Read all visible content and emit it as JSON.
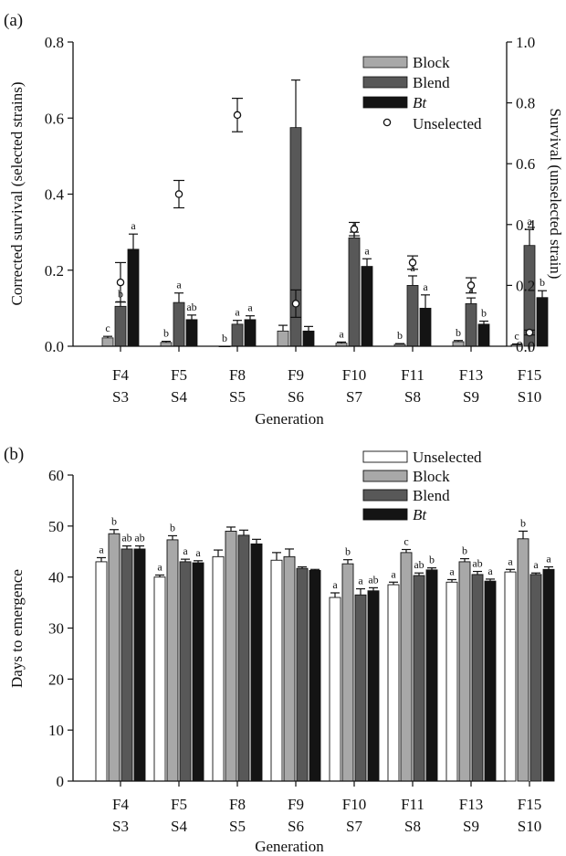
{
  "categories": [
    "F4",
    "F5",
    "F8",
    "F9",
    "F10",
    "F11",
    "F13",
    "F15"
  ],
  "categories_line2": [
    "S3",
    "S4",
    "S5",
    "S6",
    "S7",
    "S8",
    "S9",
    "S10"
  ],
  "chart_data": [
    {
      "type": "bar",
      "panel_label": "(a)",
      "xlabel": "Generation",
      "ylabel": "Corrected survival (selected strains)",
      "ylabel_right": "Survival (unselected strain)",
      "ylim": [
        0,
        0.8
      ],
      "yticks": [
        "0.0",
        "0.2",
        "0.4",
        "0.6",
        "0.8"
      ],
      "ylim_right": [
        0,
        1.0
      ],
      "yticks_right": [
        "0.0",
        "0.2",
        "0.4",
        "0.6",
        "0.8",
        "1.0"
      ],
      "legend_position": "top-right",
      "series": [
        {
          "name": "Block",
          "color": "#a8a8a8",
          "values": [
            0.022,
            0.01,
            0.0,
            0.04,
            0.008,
            0.005,
            0.012,
            0.004
          ],
          "errors": [
            0.004,
            0.003,
            0.0,
            0.015,
            0.003,
            0.002,
            0.003,
            0.002
          ],
          "letters": [
            "c",
            "b",
            "b",
            "",
            "a",
            "b",
            "b",
            "c"
          ]
        },
        {
          "name": "Blend",
          "color": "#585858",
          "values": [
            0.105,
            0.115,
            0.058,
            0.575,
            0.285,
            0.16,
            0.112,
            0.265
          ],
          "errors": [
            0.012,
            0.025,
            0.01,
            0.125,
            0.015,
            0.025,
            0.015,
            0.042
          ],
          "letters": [
            "b",
            "a",
            "a",
            "",
            "a",
            "a",
            "a",
            "a"
          ]
        },
        {
          "name": "Bt",
          "color": "#141414",
          "values": [
            0.255,
            0.07,
            0.07,
            0.04,
            0.21,
            0.1,
            0.058,
            0.128
          ],
          "errors": [
            0.04,
            0.012,
            0.01,
            0.012,
            0.02,
            0.035,
            0.008,
            0.018
          ],
          "letters": [
            "a",
            "ab",
            "a",
            "",
            "a",
            "a",
            "b",
            "b"
          ]
        },
        {
          "name": "Unselected",
          "axis": "right",
          "marker": "open-circle",
          "values": [
            0.21,
            0.5,
            0.76,
            0.14,
            0.385,
            0.275,
            0.2,
            0.045
          ],
          "errors": [
            0.065,
            0.045,
            0.055,
            0.045,
            0.022,
            0.022,
            0.025,
            0.008
          ]
        }
      ]
    },
    {
      "type": "bar",
      "panel_label": "(b)",
      "xlabel": "Generation",
      "ylabel": "Days to emergence",
      "ylim": [
        0,
        60
      ],
      "yticks": [
        "0",
        "10",
        "20",
        "30",
        "40",
        "50",
        "60"
      ],
      "legend_position": "top-right",
      "series": [
        {
          "name": "Unselected",
          "color": "#ffffff",
          "values": [
            43.0,
            40.0,
            44.0,
            43.3,
            36.0,
            38.5,
            39.0,
            41.0
          ],
          "errors": [
            0.8,
            0.4,
            1.3,
            1.5,
            0.9,
            0.5,
            0.5,
            0.5
          ],
          "letters": [
            "a",
            "a",
            "",
            "",
            "a",
            "a",
            "a",
            "a"
          ]
        },
        {
          "name": "Block",
          "color": "#a8a8a8",
          "values": [
            48.5,
            47.3,
            49.0,
            44.0,
            42.6,
            44.8,
            43.0,
            47.5
          ],
          "errors": [
            0.8,
            0.8,
            0.8,
            1.5,
            0.8,
            0.6,
            0.6,
            1.5
          ],
          "letters": [
            "b",
            "b",
            "",
            "",
            "b",
            "c",
            "b",
            "b"
          ]
        },
        {
          "name": "Blend",
          "color": "#585858",
          "values": [
            45.5,
            43.0,
            48.2,
            41.7,
            36.5,
            40.3,
            40.5,
            40.5
          ],
          "errors": [
            0.6,
            0.5,
            1.0,
            0.3,
            1.2,
            0.5,
            0.6,
            0.3
          ],
          "letters": [
            "ab",
            "a",
            "",
            "",
            "a",
            "ab",
            "ab",
            "a"
          ]
        },
        {
          "name": "Bt",
          "color": "#141414",
          "values": [
            45.5,
            42.8,
            46.5,
            41.3,
            37.3,
            41.4,
            39.2,
            41.5
          ],
          "errors": [
            0.6,
            0.4,
            0.9,
            0.2,
            0.6,
            0.4,
            0.4,
            0.5
          ],
          "letters": [
            "ab",
            "a",
            "",
            "",
            "ab",
            "b",
            "a",
            "a"
          ]
        }
      ]
    }
  ]
}
